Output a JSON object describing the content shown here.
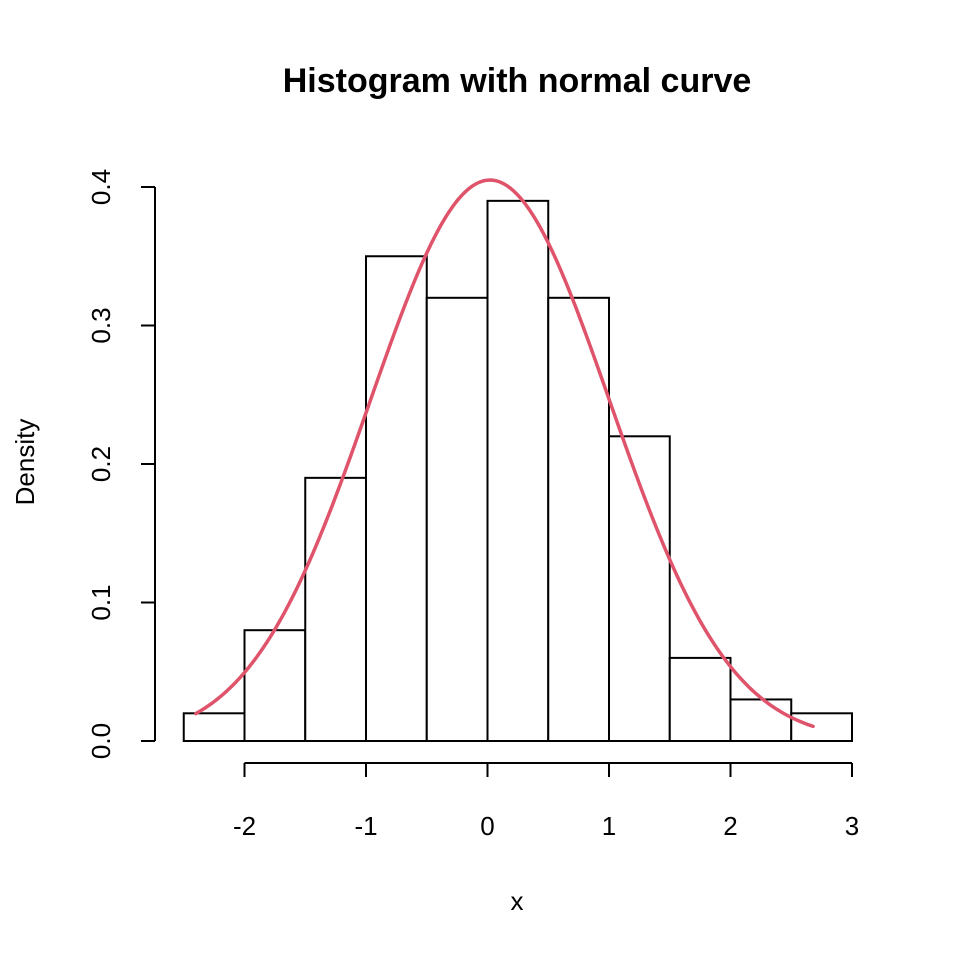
{
  "chart_data": {
    "type": "bar",
    "title": "Histogram with normal curve",
    "xlabel": "x",
    "ylabel": "Density",
    "xlim": [
      -2.5,
      3
    ],
    "ylim": [
      0,
      0.4
    ],
    "bins": [
      {
        "start": -2.5,
        "end": -2.0,
        "density": 0.02
      },
      {
        "start": -2.0,
        "end": -1.5,
        "density": 0.08
      },
      {
        "start": -1.5,
        "end": -1.0,
        "density": 0.19
      },
      {
        "start": -1.0,
        "end": -0.5,
        "density": 0.35
      },
      {
        "start": -0.5,
        "end": 0.0,
        "density": 0.32
      },
      {
        "start": 0.0,
        "end": 0.5,
        "density": 0.39
      },
      {
        "start": 0.5,
        "end": 1.0,
        "density": 0.32
      },
      {
        "start": 1.0,
        "end": 1.5,
        "density": 0.22
      },
      {
        "start": 1.5,
        "end": 2.0,
        "density": 0.06
      },
      {
        "start": 2.0,
        "end": 2.5,
        "density": 0.03
      },
      {
        "start": 2.5,
        "end": 3.0,
        "density": 0.02
      }
    ],
    "x_ticks": [
      "-2",
      "-1",
      "0",
      "1",
      "2",
      "3"
    ],
    "y_ticks": [
      "0.0",
      "0.1",
      "0.2",
      "0.3",
      "0.4"
    ],
    "curve": {
      "type": "normal-density",
      "mean": 0.02,
      "sd": 0.985,
      "x_range": [
        -2.4,
        2.68
      ],
      "color": "#DF536B"
    },
    "grid": false
  }
}
